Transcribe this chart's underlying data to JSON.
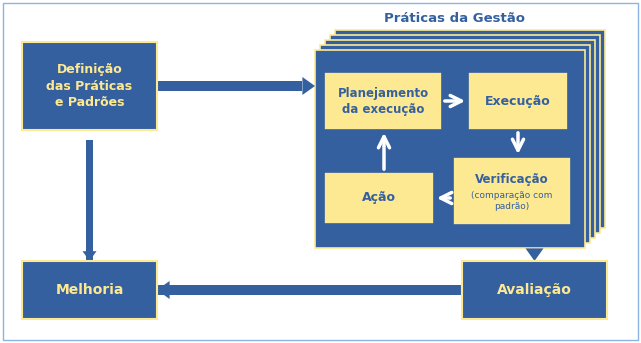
{
  "bg_color": "#ffffff",
  "border_color": "#4472c4",
  "blue": "#3560a0",
  "yellow": "#fde992",
  "white": "#ffffff",
  "title_praticas": "Práticas da Gestão",
  "box_definicao": "Definição\ndas Práticas\ne Padrões",
  "box_planejamento": "Planejamento\nda execução",
  "box_execucao": "Execução",
  "box_acao": "Ação",
  "box_verificacao": "Verificação\n(comparação com\npadrão)",
  "box_melhoria": "Melhoria",
  "box_avaliacao": "Avaliação",
  "fig_w": 6.41,
  "fig_h": 3.43,
  "dpi": 100
}
